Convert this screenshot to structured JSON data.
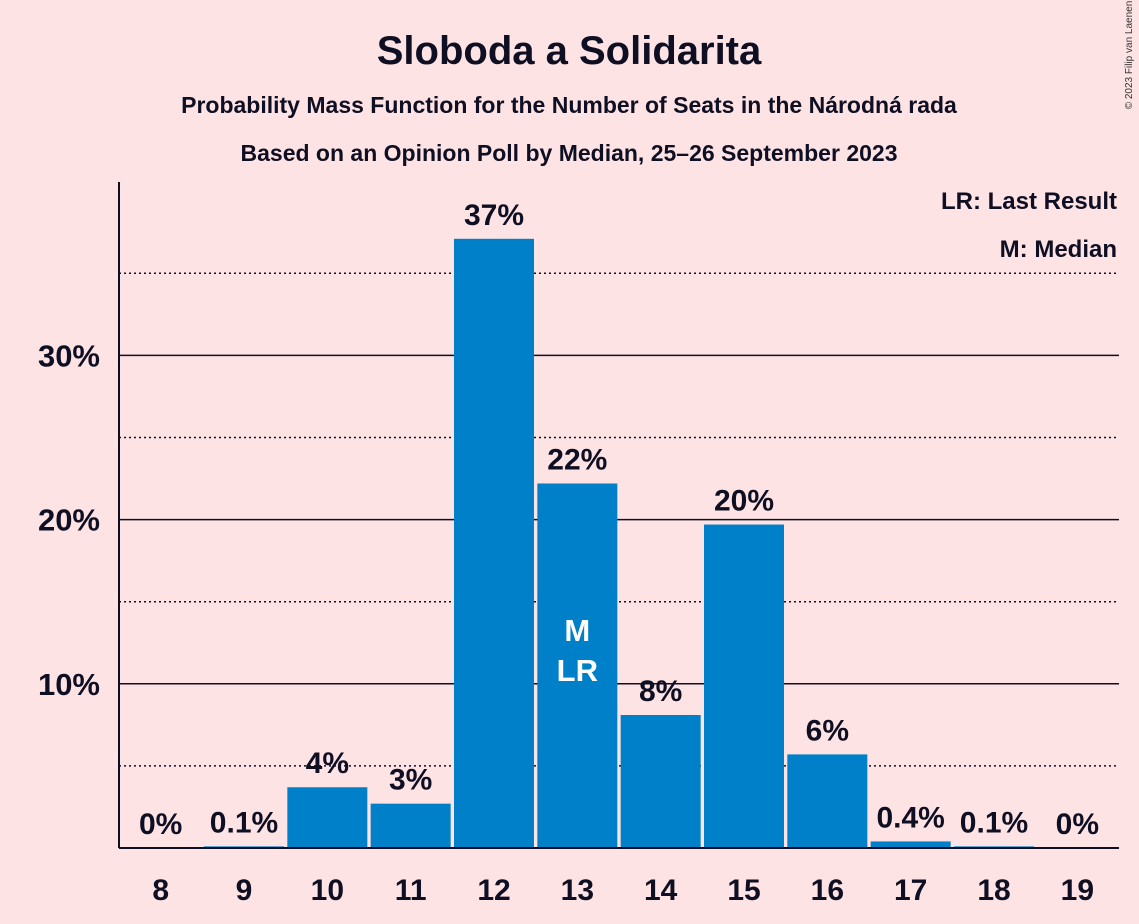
{
  "chart_data": {
    "type": "bar",
    "title": "Sloboda a Solidarita",
    "subtitle_lines": [
      "Probability Mass Function for the Number of Seats in the Národná rada",
      "Based on an Opinion Poll by Median, 25–26 September 2023"
    ],
    "categories": [
      "8",
      "9",
      "10",
      "11",
      "12",
      "13",
      "14",
      "15",
      "16",
      "17",
      "18",
      "19"
    ],
    "values": [
      0,
      0.1,
      3.7,
      2.7,
      37.1,
      22.2,
      8.1,
      19.7,
      5.7,
      0.4,
      0.1,
      0
    ],
    "value_labels": [
      "0%",
      "0.1%",
      "4%",
      "3%",
      "37%",
      "22%",
      "8%",
      "20%",
      "6%",
      "0.4%",
      "0.1%",
      "0%"
    ],
    "y_ticks": [
      10,
      20,
      30
    ],
    "y_tick_labels": [
      "10%",
      "20%",
      "30%"
    ],
    "ylim": [
      0,
      40
    ],
    "grid": {
      "major_solid": [
        10,
        20,
        30
      ],
      "minor_dotted": [
        5,
        15,
        25,
        35
      ]
    },
    "bar_color": "#0080c8",
    "background_color": "#fde3e4",
    "in_bar_markers": {
      "category": "13",
      "lines": [
        "M",
        "LR"
      ]
    },
    "legend": {
      "placement": "top-right",
      "entries": [
        "LR: Last Result",
        "M: Median"
      ]
    },
    "copyright": "© 2023 Filip van Laenen"
  }
}
